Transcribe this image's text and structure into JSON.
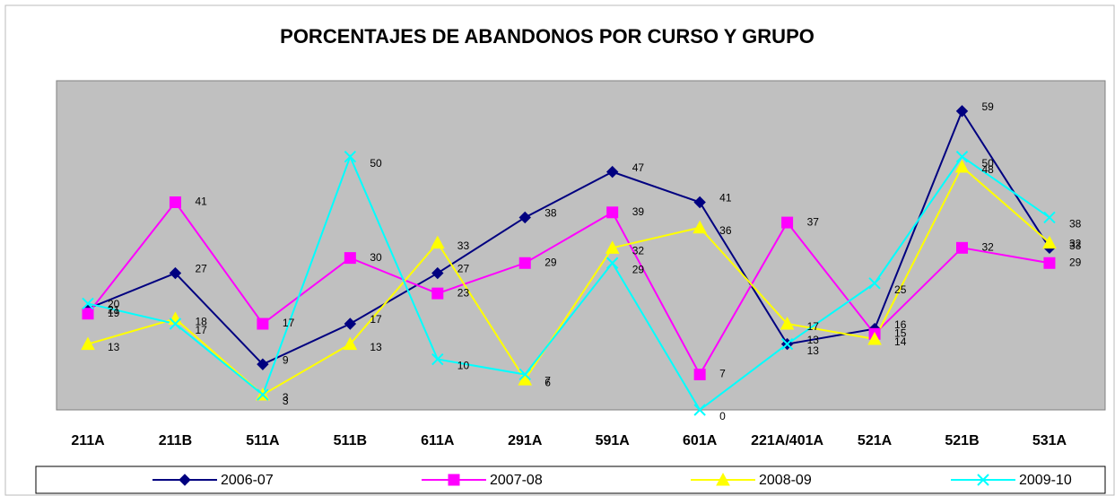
{
  "chart_data": {
    "type": "line",
    "title": "PORCENTAJES DE ABANDONOS POR CURSO Y GRUPO",
    "categories": [
      "211A",
      "211B",
      "511A",
      "511B",
      "611A",
      "291A",
      "591A",
      "601A",
      "221A/401A",
      "521A",
      "521B",
      "531A"
    ],
    "series": [
      {
        "name": "2006-07",
        "color": "#000080",
        "marker": "diamond",
        "values": [
          20,
          27,
          9,
          17,
          27,
          38,
          47,
          41,
          13,
          16,
          59,
          32
        ]
      },
      {
        "name": "2007-08",
        "color": "#ff00ff",
        "marker": "square",
        "values": [
          19,
          41,
          17,
          30,
          23,
          29,
          39,
          7,
          37,
          15,
          32,
          29
        ]
      },
      {
        "name": "2008-09",
        "color": "#ffff00",
        "marker": "triangle",
        "values": [
          13,
          18,
          3,
          13,
          33,
          6,
          32,
          36,
          17,
          14,
          48,
          33
        ]
      },
      {
        "name": "2009-10",
        "color": "#00ffff",
        "marker": "x",
        "values": [
          21,
          17,
          3,
          50,
          10,
          7,
          29,
          0,
          13,
          25,
          50,
          38
        ]
      }
    ],
    "ylim": [
      0,
      65
    ],
    "grid": false,
    "legend": "bottom"
  }
}
